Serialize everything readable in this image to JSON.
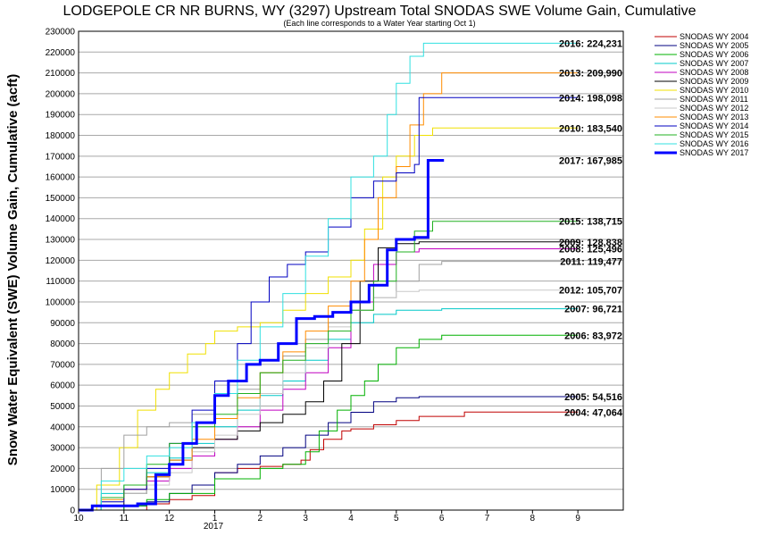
{
  "chart_data": {
    "type": "line",
    "title": "LODGEPOLE CR NR BURNS, WY (3297) Upstream Total SNODAS SWE Volume Gain, Cumulative",
    "subtitle": "(Each line corresponds to a Water Year starting Oct 1)",
    "ylabel": "Snow Water Equivalent (SWE) Volume Gain, Cumulative (acft)",
    "xlabel": "",
    "x_ticks": [
      "10",
      "11",
      "12",
      "1",
      "2",
      "3",
      "4",
      "5",
      "6",
      "7",
      "8",
      "9"
    ],
    "x_year_label": "2017",
    "xlim": [
      10,
      22
    ],
    "ylim": [
      0,
      230000
    ],
    "y_ticks": [
      0,
      10000,
      20000,
      30000,
      40000,
      50000,
      60000,
      70000,
      80000,
      90000,
      100000,
      110000,
      120000,
      130000,
      140000,
      150000,
      160000,
      170000,
      180000,
      190000,
      200000,
      210000,
      220000,
      230000
    ],
    "grid": true,
    "legend_position": "right",
    "series": [
      {
        "name": "SNODAS WY 2004",
        "color": "#c00000",
        "width": 1,
        "end_label": "2004: 47,064",
        "x": [
          10.0,
          10.8,
          11.5,
          12.0,
          12.5,
          13.0,
          13.5,
          14.0,
          14.5,
          14.9,
          15.1,
          15.4,
          15.8,
          16.0,
          16.5,
          17.0,
          17.5,
          18.5,
          19.5,
          21.0
        ],
        "y": [
          0,
          0,
          3000,
          5000,
          7000,
          18000,
          20000,
          21000,
          22000,
          24000,
          29000,
          34000,
          38000,
          39000,
          41000,
          43000,
          45000,
          47064,
          47064,
          47064
        ]
      },
      {
        "name": "SNODAS WY 2005",
        "color": "#000080",
        "width": 1,
        "end_label": "2005: 54,516",
        "x": [
          10.0,
          11.0,
          11.5,
          12.0,
          12.5,
          13.0,
          13.5,
          14.0,
          14.5,
          15.0,
          15.5,
          16.0,
          16.5,
          17.0,
          17.5,
          18.0,
          19.0,
          20.0,
          21.0
        ],
        "y": [
          0,
          2000,
          4000,
          8000,
          12000,
          18000,
          22000,
          26000,
          30000,
          36000,
          42000,
          47000,
          52000,
          54000,
          54516,
          54516,
          54516,
          54516,
          54516
        ]
      },
      {
        "name": "SNODAS WY 2006",
        "color": "#00b000",
        "width": 1,
        "end_label": "2006: 83,972",
        "x": [
          10.0,
          11.0,
          11.5,
          12.0,
          13.0,
          14.0,
          14.5,
          15.0,
          15.3,
          15.7,
          16.0,
          16.3,
          16.6,
          17.0,
          17.5,
          18.0,
          19.0,
          21.0
        ],
        "y": [
          0,
          2000,
          5000,
          8000,
          15000,
          20000,
          22000,
          28000,
          38000,
          48000,
          55000,
          62000,
          70000,
          78000,
          82000,
          83972,
          83972,
          83972
        ]
      },
      {
        "name": "SNODAS WY 2007",
        "color": "#00c8c8",
        "width": 1,
        "end_label": "2007: 96,721",
        "x": [
          10.0,
          10.5,
          11.0,
          11.5,
          12.0,
          12.5,
          13.0,
          13.5,
          14.0,
          14.5,
          15.0,
          15.5,
          16.0,
          16.5,
          17.0,
          18.0,
          19.0,
          21.0
        ],
        "y": [
          0,
          8000,
          12000,
          18000,
          25000,
          32000,
          40000,
          48000,
          55000,
          62000,
          72000,
          82000,
          90000,
          94000,
          96000,
          96721,
          96721,
          96721
        ]
      },
      {
        "name": "SNODAS WY 2008",
        "color": "#c000c0",
        "width": 1,
        "end_label": "2008: 125,496",
        "x": [
          10.0,
          10.5,
          11.0,
          11.5,
          12.0,
          12.5,
          13.0,
          13.5,
          14.0,
          14.5,
          15.0,
          15.5,
          16.0,
          16.5,
          17.0,
          17.5,
          18.0,
          19.0,
          21.0
        ],
        "y": [
          0,
          6000,
          10000,
          14000,
          20000,
          26000,
          34000,
          40000,
          48000,
          58000,
          66000,
          78000,
          100000,
          118000,
          124000,
          125496,
          125496,
          125496,
          125496
        ]
      },
      {
        "name": "SNODAS WY 2009",
        "color": "#000000",
        "width": 1,
        "end_label": "2009: 128,838",
        "x": [
          10.0,
          10.5,
          11.0,
          11.5,
          12.0,
          12.5,
          13.0,
          13.5,
          14.0,
          14.5,
          15.0,
          15.4,
          15.8,
          16.2,
          16.6,
          17.0,
          17.5,
          18.0,
          19.0,
          21.0
        ],
        "y": [
          0,
          2000,
          8000,
          16000,
          24000,
          30000,
          34000,
          38000,
          42000,
          46000,
          52000,
          62000,
          80000,
          110000,
          126000,
          128000,
          128838,
          128838,
          128838,
          128838
        ]
      },
      {
        "name": "SNODAS WY 2010",
        "color": "#f0e000",
        "width": 1,
        "end_label": "2010: 183,540",
        "x": [
          10.0,
          10.4,
          10.9,
          11.3,
          11.7,
          12.0,
          12.4,
          12.8,
          13.0,
          13.5,
          14.0,
          14.5,
          15.0,
          15.5,
          16.0,
          16.3,
          16.7,
          17.0,
          17.4,
          17.8,
          18.0,
          19.0,
          21.0
        ],
        "y": [
          0,
          12000,
          30000,
          48000,
          58000,
          66000,
          75000,
          80000,
          86000,
          88000,
          90000,
          96000,
          104000,
          112000,
          120000,
          135000,
          160000,
          170000,
          180000,
          183540,
          183540,
          183540,
          183540
        ]
      },
      {
        "name": "SNODAS WY 2011",
        "color": "#a0a0a0",
        "width": 1,
        "end_label": "2011: 119,477",
        "x": [
          10.0,
          10.5,
          11.0,
          11.5,
          12.0,
          12.5,
          13.0,
          13.5,
          14.0,
          14.5,
          15.0,
          15.5,
          16.0,
          16.5,
          17.0,
          17.5,
          18.0,
          18.5,
          19.0,
          21.0
        ],
        "y": [
          0,
          20000,
          36000,
          40000,
          42000,
          46000,
          50000,
          58000,
          66000,
          74000,
          82000,
          90000,
          96000,
          102000,
          110000,
          118000,
          119477,
          119477,
          119477,
          119477
        ]
      },
      {
        "name": "SNODAS WY 2012",
        "color": "#c8c8c8",
        "width": 1,
        "end_label": "2012: 105,707",
        "x": [
          10.0,
          10.5,
          11.0,
          11.5,
          12.0,
          12.5,
          13.0,
          13.5,
          14.0,
          14.5,
          15.0,
          15.5,
          16.0,
          16.5,
          17.0,
          17.5,
          18.0,
          19.0,
          21.0
        ],
        "y": [
          0,
          4000,
          8000,
          12000,
          18000,
          28000,
          36000,
          46000,
          56000,
          66000,
          78000,
          88000,
          96000,
          102000,
          105000,
          105707,
          105707,
          105707,
          105707
        ]
      },
      {
        "name": "SNODAS WY 2013",
        "color": "#ff8c00",
        "width": 1,
        "end_label": "2013: 209,990",
        "x": [
          10.0,
          10.5,
          11.0,
          11.5,
          12.0,
          12.5,
          13.0,
          13.5,
          14.0,
          14.5,
          15.0,
          15.5,
          16.0,
          16.3,
          16.6,
          17.0,
          17.3,
          17.6,
          18.0,
          19.0,
          21.0
        ],
        "y": [
          0,
          5000,
          10000,
          16000,
          24000,
          34000,
          44000,
          54000,
          66000,
          76000,
          86000,
          98000,
          110000,
          130000,
          150000,
          165000,
          185000,
          200000,
          209990,
          209990,
          209990
        ]
      },
      {
        "name": "SNODAS WY 2014",
        "color": "#0000c0",
        "width": 1,
        "end_label": "2014: 198,098",
        "x": [
          10.0,
          10.5,
          11.0,
          11.5,
          12.0,
          12.5,
          13.0,
          13.5,
          13.8,
          14.2,
          14.6,
          15.0,
          15.5,
          16.0,
          16.5,
          17.0,
          17.4,
          17.5,
          18.0,
          19.0,
          21.0
        ],
        "y": [
          0,
          4000,
          10000,
          20000,
          32000,
          48000,
          62000,
          80000,
          100000,
          112000,
          118000,
          124000,
          136000,
          150000,
          158000,
          162000,
          166000,
          198098,
          198098,
          198098,
          198098
        ]
      },
      {
        "name": "SNODAS WY 2015",
        "color": "#20b020",
        "width": 1,
        "end_label": "2015: 138,715",
        "x": [
          10.0,
          10.5,
          11.0,
          11.5,
          12.0,
          12.5,
          13.0,
          13.5,
          14.0,
          14.5,
          15.0,
          15.5,
          16.0,
          16.5,
          17.0,
          17.4,
          17.8,
          18.0,
          19.0,
          21.0
        ],
        "y": [
          0,
          6000,
          12000,
          22000,
          32000,
          40000,
          46000,
          56000,
          66000,
          72000,
          80000,
          86000,
          96000,
          110000,
          124000,
          134000,
          138715,
          138715,
          138715,
          138715
        ]
      },
      {
        "name": "SNODAS WY 2016",
        "color": "#30e0e0",
        "width": 1,
        "end_label": "2016: 224,231",
        "x": [
          10.0,
          10.5,
          11.0,
          11.5,
          12.0,
          12.5,
          13.0,
          13.5,
          14.0,
          14.5,
          15.0,
          15.5,
          16.0,
          16.5,
          16.8,
          17.0,
          17.3,
          17.6,
          18.0,
          19.0,
          21.0
        ],
        "y": [
          0,
          14000,
          20000,
          26000,
          30000,
          42000,
          56000,
          72000,
          88000,
          104000,
          122000,
          140000,
          160000,
          170000,
          190000,
          205000,
          218000,
          224231,
          224231,
          224231,
          224231
        ]
      },
      {
        "name": "SNODAS WY 2017",
        "color": "#0000ff",
        "width": 3,
        "end_label": "2017: 167,985",
        "x": [
          10.0,
          10.3,
          10.8,
          11.3,
          11.7,
          12.0,
          12.3,
          12.6,
          13.0,
          13.3,
          13.7,
          14.0,
          14.4,
          14.8,
          15.2,
          15.6,
          16.0,
          16.4,
          16.8,
          17.0,
          17.4,
          17.7,
          18.05
        ],
        "y": [
          0,
          2000,
          2000,
          3000,
          17000,
          22000,
          32000,
          42000,
          55000,
          62000,
          70000,
          72000,
          80000,
          92000,
          93000,
          95000,
          100000,
          108000,
          125000,
          130000,
          131000,
          168000,
          167985
        ]
      }
    ]
  }
}
